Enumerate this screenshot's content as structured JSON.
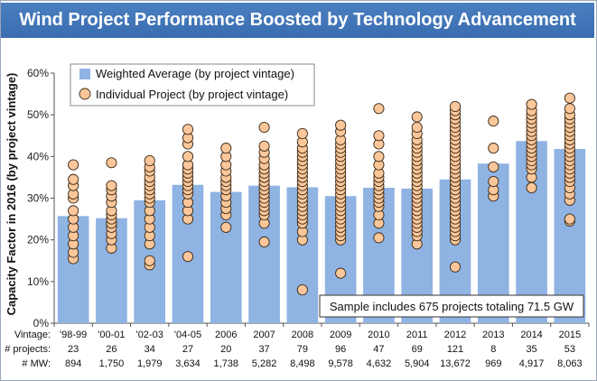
{
  "chart_data": {
    "type": "bar",
    "title": "Wind Project Performance Boosted by Technology Advancement",
    "ylabel": "Capacity Factor in 2016 (by project vintage)",
    "xlabel": "",
    "ylim": [
      0,
      60
    ],
    "yticks": [
      "0%",
      "10%",
      "20%",
      "30%",
      "40%",
      "50%",
      "60%"
    ],
    "categories": [
      "'98-99",
      "'00-01",
      "'02-03",
      "'04-05",
      "2006",
      "2007",
      "2008",
      "2009",
      "2010",
      "2011",
      "2012",
      "2013",
      "2014",
      "2015"
    ],
    "series": [
      {
        "name": "Weighted Average (by project vintage)",
        "type": "bar",
        "values": [
          25.7,
          25.2,
          29.5,
          33.2,
          31.5,
          33.0,
          32.6,
          30.5,
          32.5,
          32.3,
          34.5,
          38.3,
          43.7,
          41.8
        ]
      },
      {
        "name": "Individual Project (by project vintage)",
        "type": "scatter",
        "values": [
          [
            15.5,
            17,
            19,
            21,
            23,
            25,
            27,
            30,
            31,
            33,
            34.5,
            38
          ],
          [
            18,
            20,
            21.5,
            23,
            24,
            25,
            26,
            27,
            29,
            30.5,
            32,
            33,
            38.5
          ],
          [
            14,
            15,
            19,
            21,
            23,
            25,
            27,
            29,
            30,
            31,
            32,
            33,
            34,
            35,
            36.5,
            37.5,
            39
          ],
          [
            16,
            25,
            27,
            29,
            31,
            32,
            33,
            34,
            35,
            36,
            37,
            38,
            40,
            43,
            44.5,
            46.5
          ],
          [
            23,
            26,
            27.5,
            29,
            30.5,
            32,
            33,
            34,
            35,
            36.5,
            38,
            40,
            42
          ],
          [
            19.5,
            24,
            26,
            27,
            28,
            29,
            30,
            31,
            32,
            33,
            34,
            35,
            36,
            37,
            38,
            39.5,
            41,
            42.5,
            47
          ],
          [
            8,
            20,
            22,
            24,
            25,
            26,
            27,
            28,
            29,
            30,
            31,
            32,
            33,
            34,
            35,
            36,
            37,
            38,
            39,
            40,
            41,
            42,
            43.5,
            45.5
          ],
          [
            12,
            20,
            21,
            22,
            23,
            24,
            25,
            26,
            27,
            28,
            29,
            30,
            31,
            32,
            33,
            34,
            35,
            36,
            37,
            38,
            39,
            40,
            41,
            42,
            43,
            44,
            46,
            47.5
          ],
          [
            20.5,
            24,
            26,
            28,
            29,
            30,
            31,
            32,
            33,
            34,
            35,
            36,
            38,
            40,
            43,
            45,
            51.5
          ],
          [
            19,
            21,
            22,
            23,
            24,
            25,
            26,
            27,
            28,
            29,
            30,
            31,
            32,
            33,
            34,
            35,
            36,
            37,
            38,
            39,
            40,
            41,
            42,
            43,
            44,
            45.5,
            47,
            49.5
          ],
          [
            13.5,
            20,
            21,
            22,
            23,
            24,
            25,
            26,
            27,
            28,
            29,
            30,
            31,
            32,
            33,
            34,
            35,
            36,
            37,
            38,
            39,
            40,
            41,
            42,
            43,
            44,
            45,
            46,
            47,
            48,
            49,
            50,
            51,
            52
          ],
          [
            30.5,
            32,
            34,
            37.5,
            42,
            48.5
          ],
          [
            32.5,
            35,
            37,
            38,
            39,
            40,
            41,
            42,
            43,
            44,
            45,
            46,
            47,
            48,
            49,
            50,
            51,
            52.5
          ],
          [
            24.5,
            25,
            29.5,
            31,
            32.5,
            34,
            35,
            36,
            37,
            38,
            39,
            40,
            41,
            42,
            43,
            44,
            45,
            46,
            47,
            48,
            49,
            50,
            51.5,
            54
          ]
        ]
      }
    ],
    "table": {
      "row_labels": [
        "Vintage:",
        "# projects:",
        "# MW:"
      ],
      "projects": [
        "23",
        "26",
        "34",
        "27",
        "20",
        "37",
        "79",
        "96",
        "47",
        "69",
        "121",
        "8",
        "35",
        "53"
      ],
      "mw": [
        "894",
        "1,750",
        "1,979",
        "3,634",
        "1,738",
        "5,282",
        "8,498",
        "9,578",
        "4,632",
        "5,904",
        "13,672",
        "969",
        "4,917",
        "8,063"
      ]
    },
    "legend_position": "top-left",
    "annotation": "Sample includes 675 projects totaling 71.5 GW",
    "grid": false,
    "colors": {
      "bar": "#8fb3e2",
      "point_fill": "#fbc79a",
      "point_stroke": "#3a2a18",
      "title_bg": "#3f74b6"
    }
  }
}
